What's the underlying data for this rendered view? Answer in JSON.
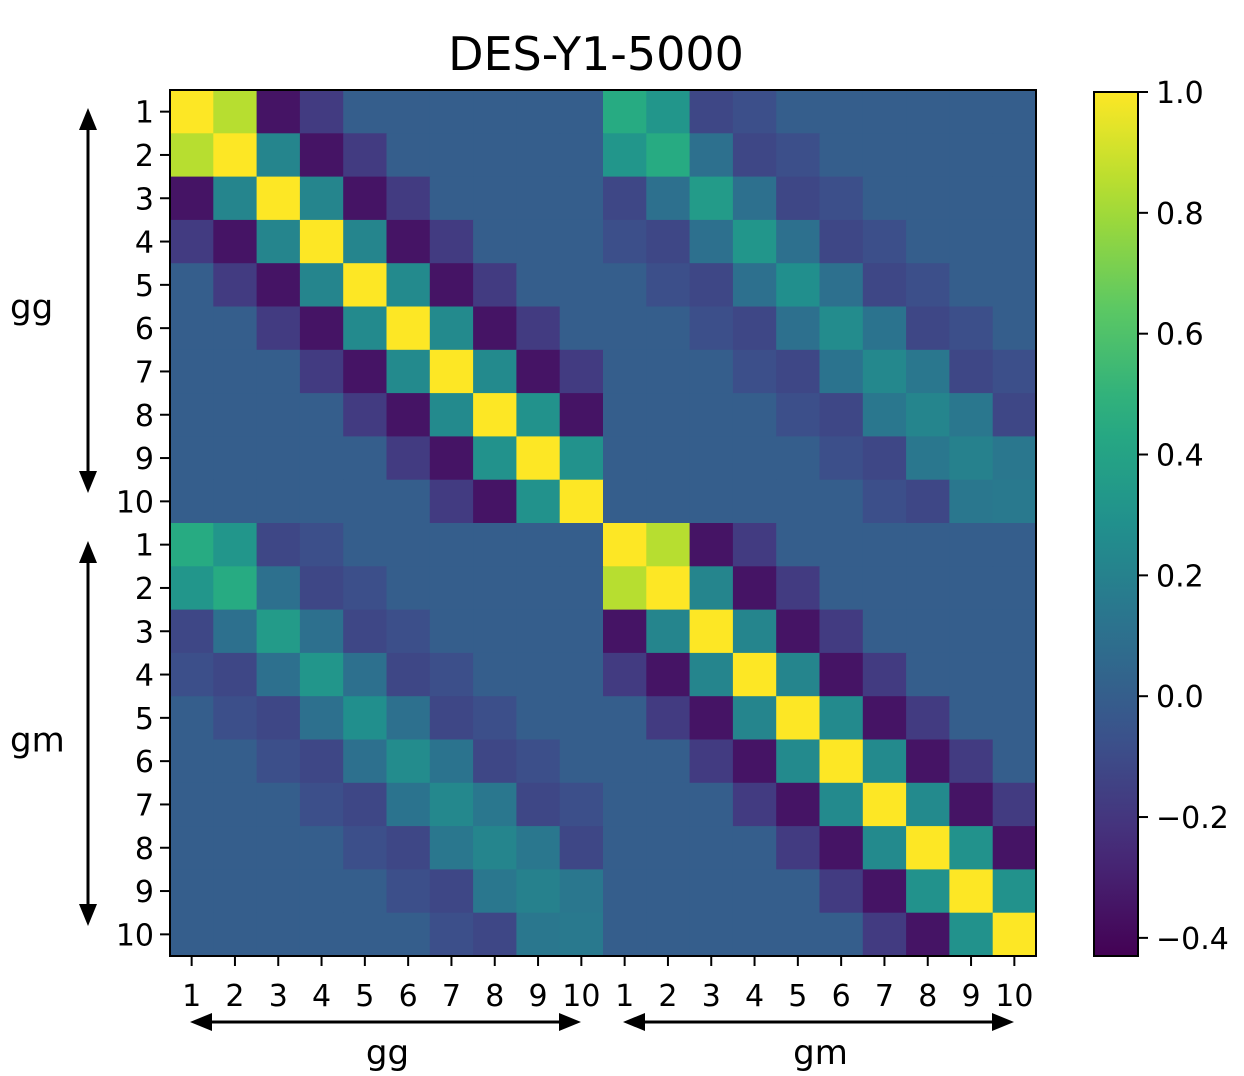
{
  "chart_data": {
    "type": "heatmap",
    "title": "DES-Y1-5000",
    "row_tick_labels": [
      "1",
      "2",
      "3",
      "4",
      "5",
      "6",
      "7",
      "8",
      "9",
      "10",
      "1",
      "2",
      "3",
      "4",
      "5",
      "6",
      "7",
      "8",
      "9",
      "10"
    ],
    "col_tick_labels": [
      "1",
      "2",
      "3",
      "4",
      "5",
      "6",
      "7",
      "8",
      "9",
      "10",
      "1",
      "2",
      "3",
      "4",
      "5",
      "6",
      "7",
      "8",
      "9",
      "10"
    ],
    "row_groups": [
      {
        "label": "gg",
        "start": 0,
        "end": 9
      },
      {
        "label": "gm",
        "start": 10,
        "end": 19
      }
    ],
    "col_groups": [
      {
        "label": "gg",
        "start": 0,
        "end": 9
      },
      {
        "label": "gm",
        "start": 10,
        "end": 19
      }
    ],
    "colorbar": {
      "colormap": "viridis",
      "range": [
        -0.43,
        1.0
      ],
      "ticks": [
        1.0,
        0.8,
        0.6,
        0.4,
        0.2,
        0.0,
        -0.2,
        -0.4
      ],
      "tick_labels": [
        "1.0",
        "0.8",
        "0.6",
        "0.4",
        "0.2",
        "0.0",
        "−0.2",
        "−0.4"
      ]
    },
    "diagonal_structure": {
      "block_within": {
        "offset0": 1.0,
        "offset1": [
          0.85,
          0.22,
          0.22,
          0.22,
          0.25,
          0.25,
          0.25,
          0.3,
          0.3
        ],
        "offset2": -0.35,
        "offset3": -0.18
      },
      "cross_block": {
        "offset0": [
          0.45,
          0.45,
          0.35,
          0.32,
          0.28,
          0.26,
          0.24,
          0.22,
          0.2,
          0.15
        ],
        "offset1": [
          0.32,
          0.1,
          0.1,
          0.1,
          0.1,
          0.12,
          0.14,
          0.14,
          0.14
        ],
        "offset2": -0.12,
        "offset3": -0.08
      },
      "background": 0.0
    }
  }
}
